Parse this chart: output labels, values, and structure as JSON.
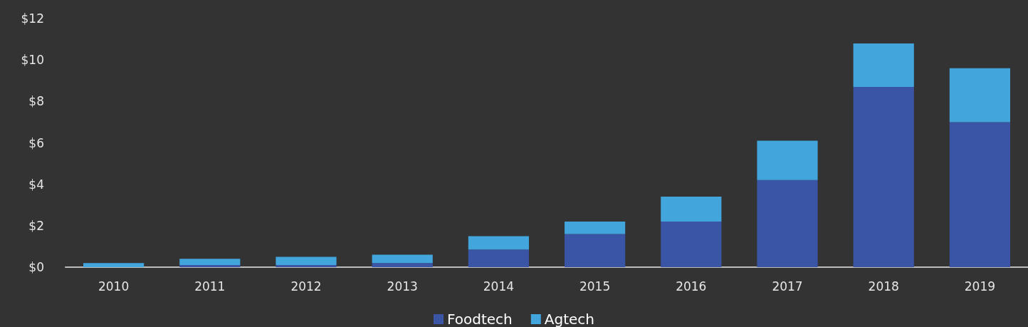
{
  "chart_data": {
    "type": "bar",
    "stacked": true,
    "categories": [
      "2010",
      "2011",
      "2012",
      "2013",
      "2014",
      "2015",
      "2016",
      "2017",
      "2018",
      "2019"
    ],
    "series": [
      {
        "name": "Foodtech",
        "color": "#3b55a6",
        "values": [
          0,
          0.1,
          0.1,
          0.2,
          0.85,
          1.6,
          2.2,
          4.2,
          8.7,
          7.0
        ]
      },
      {
        "name": "Agtech",
        "color": "#42a5dc",
        "values": [
          0.2,
          0.3,
          0.4,
          0.4,
          0.65,
          0.6,
          1.2,
          1.9,
          2.1,
          2.6
        ]
      }
    ],
    "ylim": [
      0,
      12
    ],
    "yticks": [
      {
        "value": 0,
        "label": "$0"
      },
      {
        "value": 2,
        "label": "$2"
      },
      {
        "value": 4,
        "label": "$4"
      },
      {
        "value": 6,
        "label": "$6"
      },
      {
        "value": 8,
        "label": "$8"
      },
      {
        "value": 10,
        "label": "$10"
      },
      {
        "value": 12,
        "label": "$12"
      }
    ],
    "grid": false,
    "legend": "bottom"
  }
}
